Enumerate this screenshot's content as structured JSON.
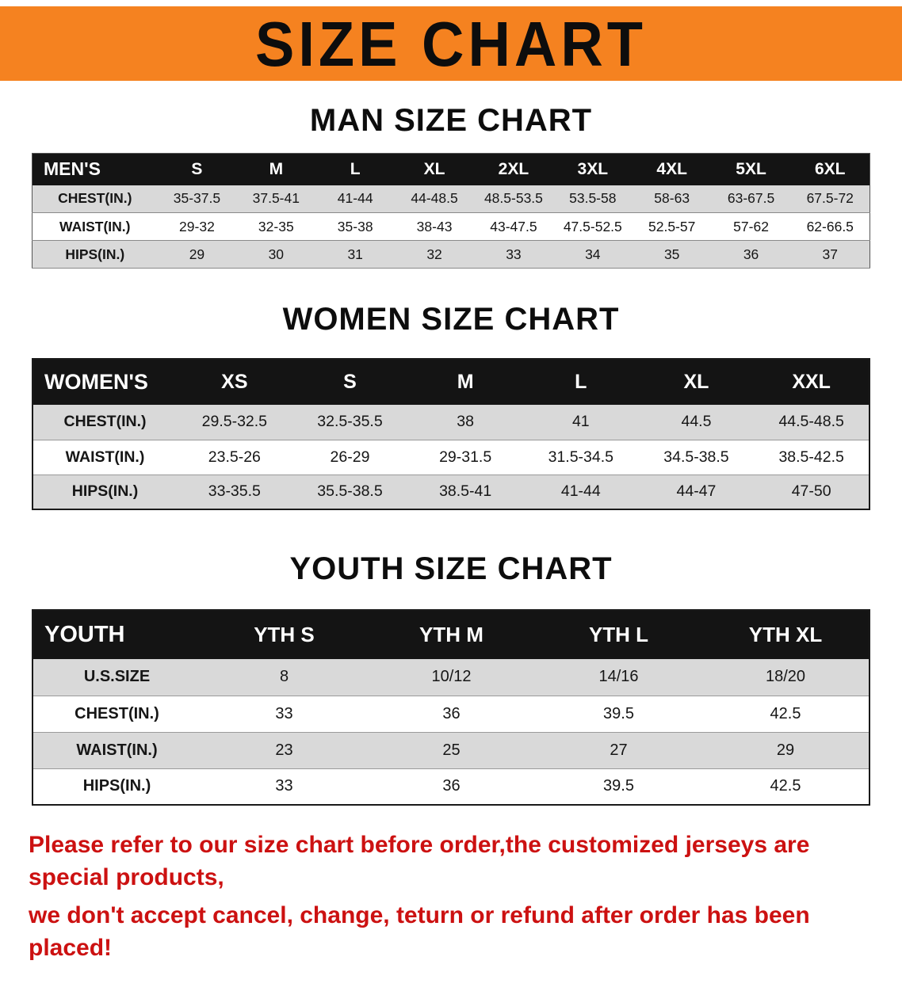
{
  "banner": {
    "title": "SIZE CHART"
  },
  "colors": {
    "banner_orange": "#F58220",
    "table_header_black": "#141414",
    "stripe_gray": "#D9D9D9",
    "notice_red": "#CC1111"
  },
  "sections": [
    {
      "heading": "MAN SIZE CHART",
      "table": {
        "header": [
          "MEN'S",
          "S",
          "M",
          "L",
          "XL",
          "2XL",
          "3XL",
          "4XL",
          "5XL",
          "6XL"
        ],
        "rows": [
          [
            "CHEST(IN.)",
            "35-37.5",
            "37.5-41",
            "41-44",
            "44-48.5",
            "48.5-53.5",
            "53.5-58",
            "58-63",
            "63-67.5",
            "67.5-72"
          ],
          [
            "WAIST(IN.)",
            "29-32",
            "32-35",
            "35-38",
            "38-43",
            "43-47.5",
            "47.5-52.5",
            "52.5-57",
            "57-62",
            "62-66.5"
          ],
          [
            "HIPS(IN.)",
            "29",
            "30",
            "31",
            "32",
            "33",
            "34",
            "35",
            "36",
            "37"
          ]
        ]
      }
    },
    {
      "heading": "WOMEN SIZE CHART",
      "table": {
        "header": [
          "WOMEN'S",
          "XS",
          "S",
          "M",
          "L",
          "XL",
          "XXL"
        ],
        "rows": [
          [
            "CHEST(IN.)",
            "29.5-32.5",
            "32.5-35.5",
            "38",
            "41",
            "44.5",
            "44.5-48.5"
          ],
          [
            "WAIST(IN.)",
            "23.5-26",
            "26-29",
            "29-31.5",
            "31.5-34.5",
            "34.5-38.5",
            "38.5-42.5"
          ],
          [
            "HIPS(IN.)",
            "33-35.5",
            "35.5-38.5",
            "38.5-41",
            "41-44",
            "44-47",
            "47-50"
          ]
        ]
      }
    },
    {
      "heading": "YOUTH SIZE CHART",
      "table": {
        "header": [
          "YOUTH",
          "YTH S",
          "YTH M",
          "YTH L",
          "YTH XL"
        ],
        "rows": [
          [
            "U.S.SIZE",
            "8",
            "10/12",
            "14/16",
            "18/20"
          ],
          [
            "CHEST(IN.)",
            "33",
            "36",
            "39.5",
            "42.5"
          ],
          [
            "WAIST(IN.)",
            "23",
            "25",
            "27",
            "29"
          ],
          [
            "HIPS(IN.)",
            "33",
            "36",
            "39.5",
            "42.5"
          ]
        ]
      }
    }
  ],
  "footer": {
    "line1": "Please refer to our size chart before order,the customized jerseys are special products,",
    "line2": "we don't accept cancel, change, teturn or refund after order has been placed!"
  }
}
